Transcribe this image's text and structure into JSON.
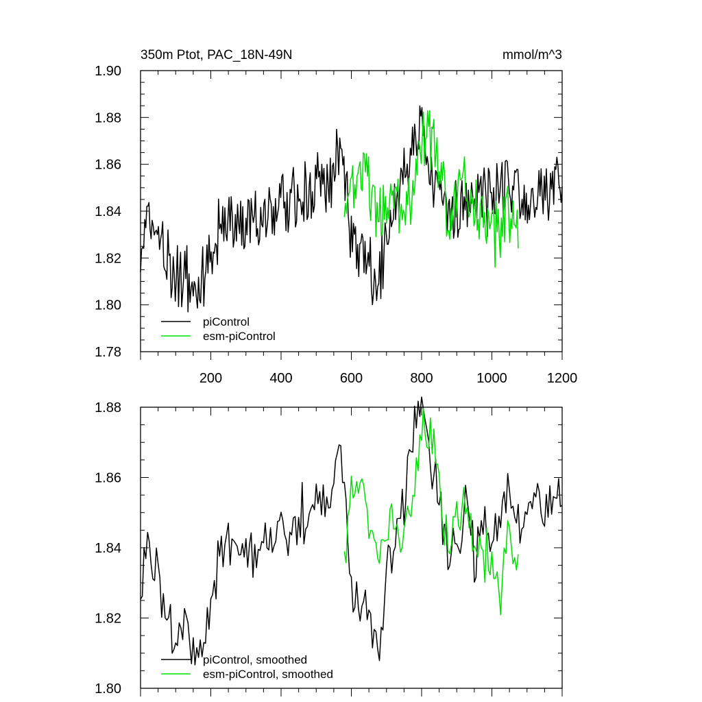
{
  "header": {
    "title": "350m Ptot, PAC_18N-49N",
    "units": "mmol/m^3"
  },
  "colors": {
    "piControl": "#000000",
    "esmPiControl": "#00e000"
  },
  "chart_data": [
    {
      "type": "line",
      "title": "350m Ptot, PAC_18N-49N",
      "units": "mmol/m^3",
      "xlim": [
        0,
        1200
      ],
      "ylim": [
        1.78,
        1.9
      ],
      "x_ticks": [
        200,
        400,
        600,
        800,
        1000,
        1200
      ],
      "x_tick_labels": [
        "200",
        "400",
        "600",
        "800",
        "1000",
        "1200"
      ],
      "y_ticks": [
        1.78,
        1.8,
        1.82,
        1.84,
        1.86,
        1.88,
        1.9
      ],
      "y_tick_labels": [
        "1.78",
        "1.80",
        "1.82",
        "1.84",
        "1.86",
        "1.88",
        "1.90"
      ],
      "legend": {
        "position": "bottom-left",
        "entries": [
          "piControl",
          "esm-piControl"
        ]
      },
      "series": [
        {
          "name": "piControl",
          "x": [
            0,
            25,
            50,
            75,
            100,
            125,
            150,
            175,
            200,
            225,
            250,
            275,
            300,
            325,
            350,
            375,
            400,
            425,
            450,
            475,
            500,
            525,
            550,
            575,
            600,
            625,
            650,
            675,
            700,
            725,
            750,
            775,
            800,
            825,
            850,
            875,
            900,
            925,
            950,
            975,
            1000,
            1025,
            1050,
            1075,
            1100,
            1125,
            1150,
            1175,
            1200
          ],
          "values": [
            1.822,
            1.836,
            1.83,
            1.818,
            1.812,
            1.816,
            1.81,
            1.808,
            1.82,
            1.832,
            1.84,
            1.836,
            1.834,
            1.838,
            1.842,
            1.836,
            1.844,
            1.84,
            1.848,
            1.846,
            1.85,
            1.852,
            1.856,
            1.864,
            1.826,
            1.82,
            1.816,
            1.808,
            1.826,
            1.84,
            1.85,
            1.868,
            1.876,
            1.86,
            1.852,
            1.838,
            1.84,
            1.848,
            1.84,
            1.846,
            1.844,
            1.852,
            1.85,
            1.844,
            1.846,
            1.85,
            1.848,
            1.854,
            1.848
          ]
        },
        {
          "name": "esm-piControl",
          "x": [
            580,
            600,
            625,
            650,
            675,
            700,
            725,
            750,
            775,
            800,
            825,
            850,
            875,
            900,
            925,
            950,
            975,
            1000,
            1025,
            1050,
            1075
          ],
          "values": [
            1.845,
            1.852,
            1.858,
            1.846,
            1.838,
            1.84,
            1.846,
            1.838,
            1.852,
            1.87,
            1.872,
            1.856,
            1.842,
            1.846,
            1.848,
            1.84,
            1.84,
            1.834,
            1.83,
            1.842,
            1.834
          ]
        }
      ]
    },
    {
      "type": "line",
      "xlim": [
        0,
        1200
      ],
      "ylim": [
        1.8,
        1.88
      ],
      "y_ticks": [
        1.8,
        1.82,
        1.84,
        1.86,
        1.88
      ],
      "y_tick_labels": [
        "1.80",
        "1.82",
        "1.84",
        "1.86",
        "1.88"
      ],
      "legend": {
        "position": "bottom-left",
        "entries": [
          "piControl, smoothed",
          "esm-piControl, smoothed"
        ]
      },
      "series": [
        {
          "name": "piControl, smoothed",
          "x": [
            0,
            25,
            50,
            75,
            100,
            125,
            150,
            175,
            200,
            225,
            250,
            275,
            300,
            325,
            350,
            375,
            400,
            425,
            450,
            475,
            500,
            525,
            550,
            575,
            600,
            625,
            650,
            675,
            700,
            725,
            750,
            775,
            800,
            825,
            850,
            875,
            900,
            925,
            950,
            975,
            1000,
            1025,
            1050,
            1075,
            1100,
            1125,
            1150,
            1175,
            1200
          ],
          "values": [
            1.828,
            1.838,
            1.832,
            1.818,
            1.812,
            1.818,
            1.812,
            1.81,
            1.822,
            1.836,
            1.842,
            1.838,
            1.836,
            1.84,
            1.846,
            1.838,
            1.846,
            1.842,
            1.85,
            1.848,
            1.852,
            1.854,
            1.858,
            1.866,
            1.83,
            1.824,
            1.818,
            1.81,
            1.83,
            1.842,
            1.852,
            1.872,
            1.876,
            1.864,
            1.852,
            1.838,
            1.84,
            1.85,
            1.838,
            1.846,
            1.842,
            1.852,
            1.854,
            1.846,
            1.848,
            1.854,
            1.85,
            1.858,
            1.852
          ]
        },
        {
          "name": "esm-piControl, smoothed",
          "x": [
            580,
            600,
            625,
            650,
            675,
            700,
            725,
            750,
            775,
            800,
            825,
            850,
            875,
            900,
            925,
            950,
            975,
            1000,
            1025,
            1050,
            1075
          ],
          "values": [
            1.838,
            1.858,
            1.86,
            1.848,
            1.838,
            1.842,
            1.85,
            1.838,
            1.856,
            1.872,
            1.874,
            1.856,
            1.84,
            1.848,
            1.85,
            1.838,
            1.838,
            1.834,
            1.824,
            1.848,
            1.834
          ]
        }
      ]
    }
  ]
}
